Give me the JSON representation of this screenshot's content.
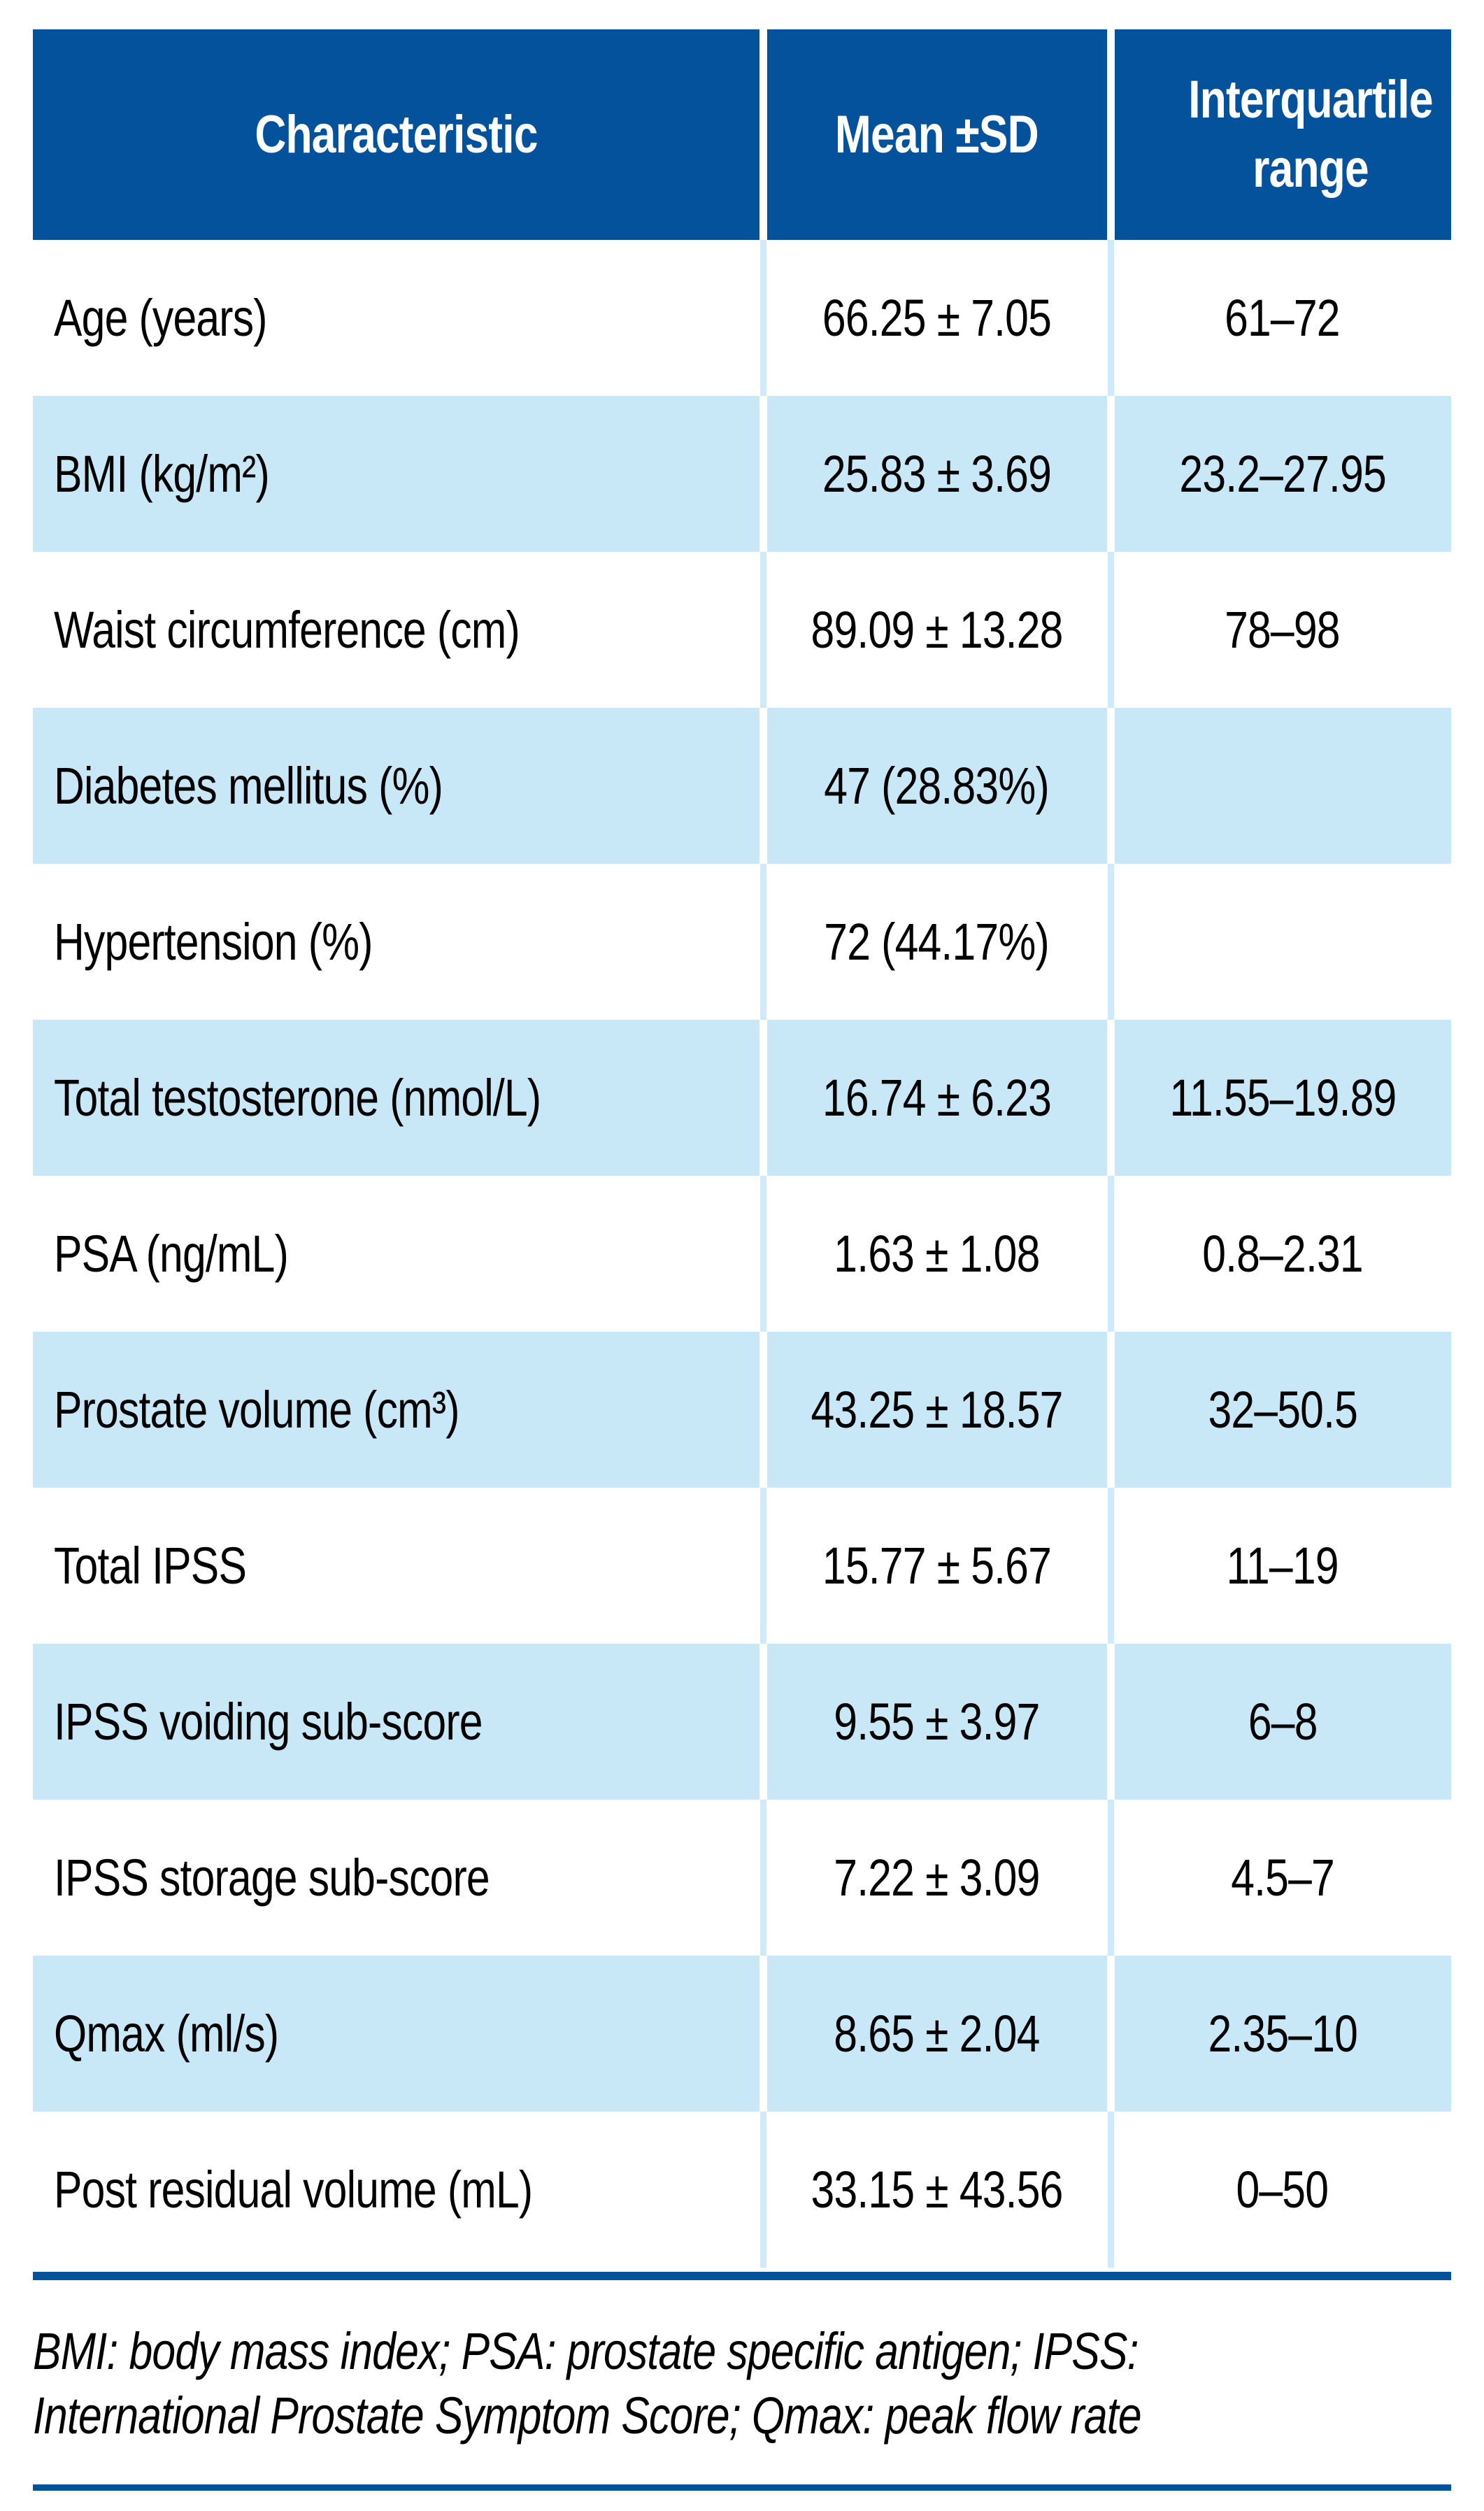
{
  "colors": {
    "header_blue": "#05529c",
    "row_light_blue": "#c8e8f8",
    "row_divider_light": "#cfeafa",
    "rule_blue": "#05529c",
    "header_text": "#ffffff",
    "body_text": "#000000"
  },
  "table": {
    "columns": [
      {
        "label": "Characteristic"
      },
      {
        "label": "Mean ±SD"
      },
      {
        "label": "Interquartile range"
      }
    ],
    "rows": [
      {
        "label": "Age (years)",
        "mean_sd": "66.25 ± 7.05",
        "iqr": "61–72"
      },
      {
        "label": "BMI (kg/m²)",
        "mean_sd": "25.83 ± 3.69",
        "iqr": "23.2–27.95"
      },
      {
        "label": "Waist circumference (cm)",
        "mean_sd": "89.09 ± 13.28",
        "iqr": "78–98"
      },
      {
        "label": "Diabetes mellitus (%)",
        "mean_sd": "47 (28.83%)",
        "iqr": ""
      },
      {
        "label": "Hypertension (%)",
        "mean_sd": "72 (44.17%)",
        "iqr": ""
      },
      {
        "label": "Total testosterone (nmol/L)",
        "mean_sd": "16.74 ± 6.23",
        "iqr": "11.55–19.89"
      },
      {
        "label": "PSA (ng/mL)",
        "mean_sd": "1.63 ± 1.08",
        "iqr": "0.8–2.31"
      },
      {
        "label": "Prostate volume (cm³)",
        "mean_sd": "43.25 ± 18.57",
        "iqr": "32–50.5"
      },
      {
        "label": "Total IPSS",
        "mean_sd": "15.77 ± 5.67",
        "iqr": "11–19"
      },
      {
        "label": "IPSS voiding sub-score",
        "mean_sd": "9.55 ± 3.97",
        "iqr": "6–8"
      },
      {
        "label": "IPSS storage sub-score",
        "mean_sd": "7.22 ± 3.09",
        "iqr": "4.5–7"
      },
      {
        "label": "Qmax (ml/s)",
        "mean_sd": "8.65 ± 2.04",
        "iqr": "2.35–10"
      },
      {
        "label": "Post residual volume (mL)",
        "mean_sd": "33.15 ± 43.56",
        "iqr": "0–50"
      }
    ]
  },
  "footnote": {
    "line1": "BMI: body mass index; PSA: prostate specific antigen; IPSS:",
    "line2": "International Prostate Symptom Score; Qmax: peak flow rate"
  }
}
